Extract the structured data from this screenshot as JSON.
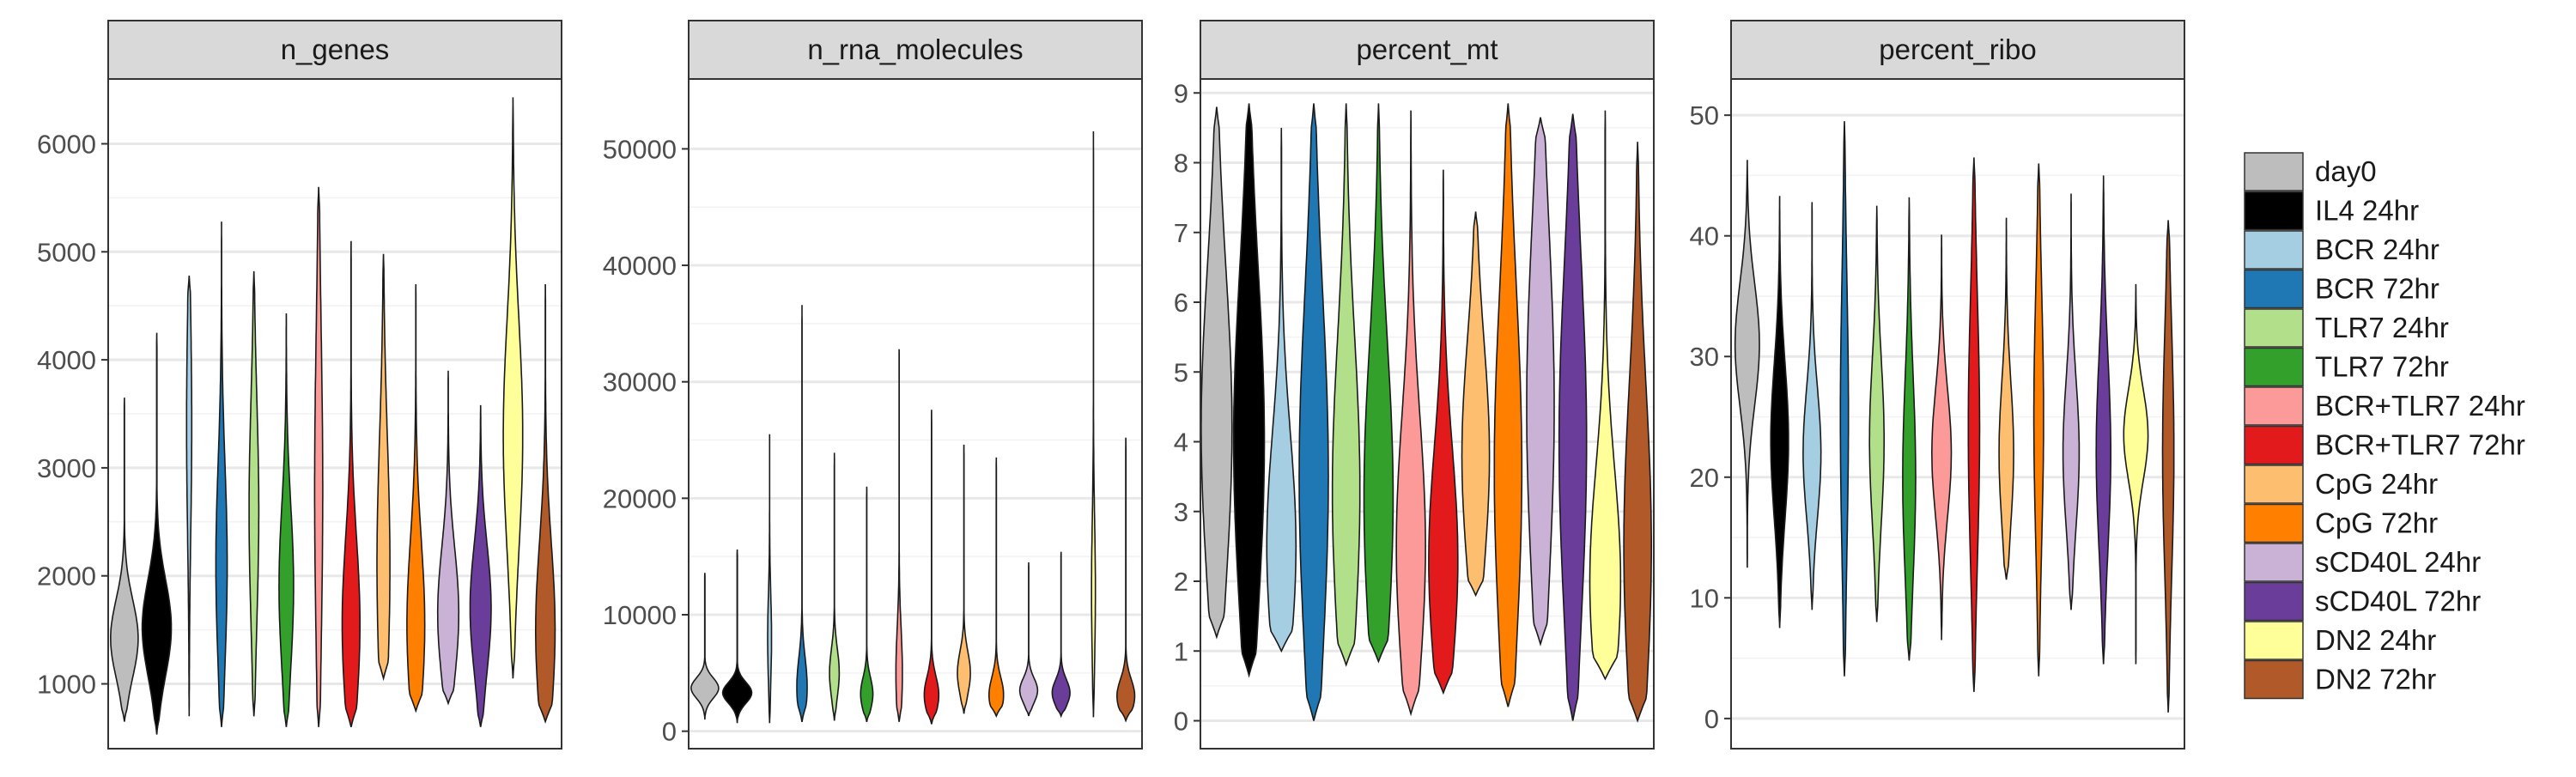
{
  "chart_data": {
    "type": "violin",
    "legend": {
      "placement": "right",
      "entries": [
        {
          "name": "day0",
          "color": "#BDBDBD"
        },
        {
          "name": "IL4 24hr",
          "color": "#000000"
        },
        {
          "name": "BCR 24hr",
          "color": "#A6CEE3"
        },
        {
          "name": "BCR 72hr",
          "color": "#1F78B4"
        },
        {
          "name": "TLR7 24hr",
          "color": "#B2DF8A"
        },
        {
          "name": "TLR7 72hr",
          "color": "#33A02C"
        },
        {
          "name": "BCR+TLR7 24hr",
          "color": "#FB9A99"
        },
        {
          "name": "BCR+TLR7 72hr",
          "color": "#E31A1C"
        },
        {
          "name": "CpG 24hr",
          "color": "#FDBF6F"
        },
        {
          "name": "CpG 72hr",
          "color": "#FF7F00"
        },
        {
          "name": "sCD40L 24hr",
          "color": "#CAB2D6"
        },
        {
          "name": "sCD40L 72hr",
          "color": "#6A3D9A"
        },
        {
          "name": "DN2 24hr",
          "color": "#FFFF99"
        },
        {
          "name": "DN2 72hr",
          "color": "#B15928"
        }
      ]
    },
    "panels": [
      {
        "title": "n_genes",
        "ylim": [
          400,
          6600
        ],
        "yticks": [
          1000,
          2000,
          3000,
          4000,
          5000,
          6000
        ],
        "ytick_labels": [
          "1000",
          "2000",
          "3000",
          "4000",
          "5000",
          "6000"
        ],
        "violins": [
          {
            "min": 650,
            "max": 3650,
            "mode": 1420,
            "width": 0.85,
            "spread": 0.12,
            "skew": 0.0
          },
          {
            "min": 530,
            "max": 4250,
            "mode": 1520,
            "width": 0.9,
            "spread": 0.12,
            "skew": 0.0
          },
          {
            "min": 700,
            "max": 4780,
            "mode": 3400,
            "width": 0.16,
            "spread": 0.25,
            "skew": 0.1
          },
          {
            "min": 600,
            "max": 5280,
            "mode": 2100,
            "width": 0.35,
            "spread": 0.2,
            "skew": 0.05
          },
          {
            "min": 700,
            "max": 4820,
            "mode": 2600,
            "width": 0.3,
            "spread": 0.25,
            "skew": 0.0
          },
          {
            "min": 600,
            "max": 4430,
            "mode": 1900,
            "width": 0.45,
            "spread": 0.2,
            "skew": 0.0
          },
          {
            "min": 600,
            "max": 5600,
            "mode": 2800,
            "width": 0.25,
            "spread": 0.3,
            "skew": 0.0
          },
          {
            "min": 600,
            "max": 5100,
            "mode": 1550,
            "width": 0.55,
            "spread": 0.18,
            "skew": 0.05
          },
          {
            "min": 1050,
            "max": 4980,
            "mode": 2100,
            "width": 0.4,
            "spread": 0.3,
            "skew": 0.0
          },
          {
            "min": 750,
            "max": 4700,
            "mode": 1550,
            "width": 0.55,
            "spread": 0.2,
            "skew": 0.05
          },
          {
            "min": 820,
            "max": 3900,
            "mode": 1650,
            "width": 0.65,
            "spread": 0.2,
            "skew": 0.0
          },
          {
            "min": 600,
            "max": 3580,
            "mode": 1700,
            "width": 0.65,
            "spread": 0.2,
            "skew": 0.0
          },
          {
            "min": 1050,
            "max": 6430,
            "mode": 3300,
            "width": 0.6,
            "spread": 0.2,
            "skew": 0.0
          },
          {
            "min": 650,
            "max": 4700,
            "mode": 1500,
            "width": 0.6,
            "spread": 0.2,
            "skew": 0.05
          }
        ]
      },
      {
        "title": "n_rna_molecules",
        "ylim": [
          -1500,
          56000
        ],
        "yticks": [
          0,
          10000,
          20000,
          30000,
          40000,
          50000
        ],
        "ytick_labels": [
          "0",
          "10000",
          "20000",
          "30000",
          "40000",
          "50000"
        ],
        "violins": [
          {
            "min": 1000,
            "max": 13600,
            "mode": 3700,
            "width": 0.85,
            "spread": 0.07,
            "skew": 0.0
          },
          {
            "min": 700,
            "max": 15600,
            "mode": 3300,
            "width": 0.9,
            "spread": 0.06,
            "skew": 0.0
          },
          {
            "min": 700,
            "max": 25500,
            "mode": 8000,
            "width": 0.12,
            "spread": 0.15,
            "skew": 0.2
          },
          {
            "min": 800,
            "max": 36600,
            "mode": 3800,
            "width": 0.32,
            "spread": 0.07,
            "skew": 0.25
          },
          {
            "min": 900,
            "max": 23900,
            "mode": 5000,
            "width": 0.3,
            "spread": 0.09,
            "skew": 0.2
          },
          {
            "min": 800,
            "max": 21000,
            "mode": 3200,
            "width": 0.38,
            "spread": 0.07,
            "skew": 0.2
          },
          {
            "min": 800,
            "max": 32800,
            "mode": 5000,
            "width": 0.2,
            "spread": 0.12,
            "skew": 0.2
          },
          {
            "min": 600,
            "max": 27600,
            "mode": 3100,
            "width": 0.45,
            "spread": 0.06,
            "skew": 0.2
          },
          {
            "min": 1500,
            "max": 24600,
            "mode": 5000,
            "width": 0.4,
            "spread": 0.08,
            "skew": 0.2
          },
          {
            "min": 1300,
            "max": 23500,
            "mode": 3100,
            "width": 0.45,
            "spread": 0.07,
            "skew": 0.2
          },
          {
            "min": 1300,
            "max": 14500,
            "mode": 3500,
            "width": 0.55,
            "spread": 0.08,
            "skew": 0.1
          },
          {
            "min": 1300,
            "max": 15400,
            "mode": 3300,
            "width": 0.55,
            "spread": 0.08,
            "skew": 0.1
          },
          {
            "min": 1200,
            "max": 51500,
            "mode": 12000,
            "width": 0.12,
            "spread": 0.12,
            "skew": 0.15
          },
          {
            "min": 900,
            "max": 25200,
            "mode": 3000,
            "width": 0.55,
            "spread": 0.06,
            "skew": 0.15
          }
        ]
      },
      {
        "title": "percent_mt",
        "ylim": [
          -0.4,
          9.2
        ],
        "yticks": [
          0,
          1,
          2,
          3,
          4,
          5,
          6,
          7,
          8,
          9
        ],
        "ytick_labels": [
          "0",
          "1",
          "2",
          "3",
          "4",
          "5",
          "6",
          "7",
          "8",
          "9"
        ],
        "violins": [
          {
            "min": 1.2,
            "max": 8.8,
            "mode": 4.2,
            "width": 0.95,
            "spread": 0.3,
            "skew": 0.0
          },
          {
            "min": 0.65,
            "max": 8.85,
            "mode": 4.0,
            "width": 0.95,
            "spread": 0.3,
            "skew": 0.0
          },
          {
            "min": 1.0,
            "max": 8.5,
            "mode": 2.5,
            "width": 0.9,
            "spread": 0.22,
            "skew": 0.1
          },
          {
            "min": 0.0,
            "max": 8.85,
            "mode": 3.5,
            "width": 0.9,
            "spread": 0.3,
            "skew": 0.0
          },
          {
            "min": 0.8,
            "max": 8.85,
            "mode": 3.3,
            "width": 0.85,
            "spread": 0.28,
            "skew": 0.0
          },
          {
            "min": 0.85,
            "max": 8.85,
            "mode": 3.2,
            "width": 0.9,
            "spread": 0.28,
            "skew": 0.0
          },
          {
            "min": 0.1,
            "max": 8.75,
            "mode": 2.5,
            "width": 0.9,
            "spread": 0.22,
            "skew": 0.05
          },
          {
            "min": 0.4,
            "max": 7.9,
            "mode": 2.3,
            "width": 0.9,
            "spread": 0.22,
            "skew": 0.05
          },
          {
            "min": 1.8,
            "max": 7.3,
            "mode": 3.8,
            "width": 0.85,
            "spread": 0.3,
            "skew": 0.0
          },
          {
            "min": 0.2,
            "max": 8.85,
            "mode": 3.6,
            "width": 0.85,
            "spread": 0.3,
            "skew": 0.0
          },
          {
            "min": 1.1,
            "max": 8.65,
            "mode": 4.5,
            "width": 0.85,
            "spread": 0.35,
            "skew": 0.0
          },
          {
            "min": 0.0,
            "max": 8.7,
            "mode": 4.0,
            "width": 0.85,
            "spread": 0.3,
            "skew": 0.0
          },
          {
            "min": 0.6,
            "max": 8.75,
            "mode": 2.0,
            "width": 0.95,
            "spread": 0.2,
            "skew": 0.05
          },
          {
            "min": 0.0,
            "max": 8.3,
            "mode": 2.5,
            "width": 0.85,
            "spread": 0.28,
            "skew": 0.0
          }
        ]
      },
      {
        "title": "percent_ribo",
        "ylim": [
          -2.5,
          53
        ],
        "yticks": [
          0,
          10,
          20,
          30,
          40,
          50
        ],
        "ytick_labels": [
          "0",
          "10",
          "20",
          "30",
          "40",
          "50"
        ],
        "violins": [
          {
            "min": 12.5,
            "max": 46.3,
            "mode": 31,
            "width": 0.75,
            "spread": 0.15,
            "skew": 0.0
          },
          {
            "min": 7.5,
            "max": 43.3,
            "mode": 23,
            "width": 0.55,
            "spread": 0.18,
            "skew": 0.0
          },
          {
            "min": 9.0,
            "max": 42.8,
            "mode": 22,
            "width": 0.55,
            "spread": 0.16,
            "skew": 0.0
          },
          {
            "min": 3.5,
            "max": 49.5,
            "mode": 25,
            "width": 0.25,
            "spread": 0.25,
            "skew": 0.0
          },
          {
            "min": 8.0,
            "max": 42.5,
            "mode": 23,
            "width": 0.45,
            "spread": 0.2,
            "skew": 0.0
          },
          {
            "min": 4.8,
            "max": 43.2,
            "mode": 20,
            "width": 0.4,
            "spread": 0.22,
            "skew": 0.0
          },
          {
            "min": 6.5,
            "max": 40.1,
            "mode": 22,
            "width": 0.6,
            "spread": 0.16,
            "skew": 0.0
          },
          {
            "min": 2.2,
            "max": 46.5,
            "mode": 24,
            "width": 0.35,
            "spread": 0.25,
            "skew": 0.0
          },
          {
            "min": 11.5,
            "max": 41.5,
            "mode": 22,
            "width": 0.45,
            "spread": 0.2,
            "skew": 0.0
          },
          {
            "min": 3.5,
            "max": 46.0,
            "mode": 25,
            "width": 0.3,
            "spread": 0.25,
            "skew": 0.0
          },
          {
            "min": 9.0,
            "max": 43.5,
            "mode": 22,
            "width": 0.5,
            "spread": 0.18,
            "skew": 0.0
          },
          {
            "min": 4.5,
            "max": 45.0,
            "mode": 22,
            "width": 0.45,
            "spread": 0.2,
            "skew": 0.0
          },
          {
            "min": 4.5,
            "max": 36.0,
            "mode": 23.5,
            "width": 0.75,
            "spread": 0.12,
            "skew": 0.0
          },
          {
            "min": 0.5,
            "max": 41.3,
            "mode": 22,
            "width": 0.35,
            "spread": 0.25,
            "skew": 0.0
          }
        ]
      }
    ]
  }
}
